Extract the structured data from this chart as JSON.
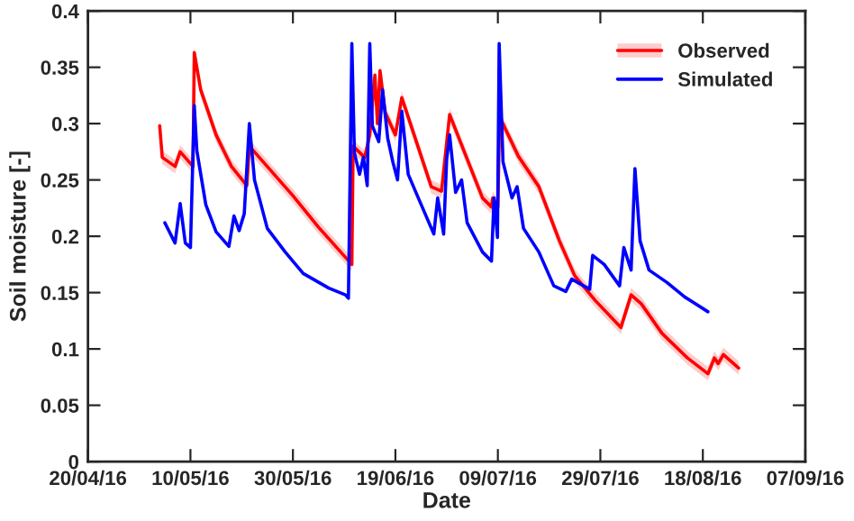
{
  "chart_data": {
    "type": "line",
    "xlabel": "Date",
    "ylabel": "Soil moisture [-]",
    "xlim": [
      "2016-04-20",
      "2016-09-07"
    ],
    "xticks": [
      {
        "value": "2016-04-20",
        "label": "20/04/16"
      },
      {
        "value": "2016-05-10",
        "label": "10/05/16"
      },
      {
        "value": "2016-05-30",
        "label": "30/05/16"
      },
      {
        "value": "2016-06-19",
        "label": "19/06/16"
      },
      {
        "value": "2016-07-09",
        "label": "09/07/16"
      },
      {
        "value": "2016-07-29",
        "label": "29/07/16"
      },
      {
        "value": "2016-08-18",
        "label": "18/08/16"
      },
      {
        "value": "2016-09-07",
        "label": "07/09/16"
      }
    ],
    "ylim": [
      0,
      0.4
    ],
    "yticks": [
      0,
      0.05,
      0.1,
      0.15,
      0.2,
      0.25,
      0.3,
      0.35,
      0.4
    ],
    "grid": false,
    "legend": "top right",
    "line_style": "solid",
    "marker": "none",
    "series": [
      {
        "name": "Observed",
        "color": "#ff0000",
        "x": [
          "2016-05-04T00:00",
          "2016-05-04T12:00",
          "2016-05-07T00:00",
          "2016-05-08T00:00",
          "2016-05-10T12:00",
          "2016-05-10T18:00",
          "2016-05-12T00:00",
          "2016-05-15T00:00",
          "2016-05-18T00:00",
          "2016-05-21T00:00",
          "2016-05-21T12:00",
          "2016-05-30T00:00",
          "2016-06-04T00:00",
          "2016-06-10T12:00",
          "2016-06-10T18:00",
          "2016-06-13T00:00",
          "2016-06-14T00:00",
          "2016-06-15T00:00",
          "2016-06-15T12:00",
          "2016-06-16T00:00",
          "2016-06-17T00:00",
          "2016-06-19T00:00",
          "2016-06-20T06:00",
          "2016-06-26T00:00",
          "2016-06-28T00:00",
          "2016-06-29T14:00",
          "2016-07-06T00:00",
          "2016-07-07T18:00",
          "2016-07-08T00:00",
          "2016-07-09T00:00",
          "2016-07-09T08:00",
          "2016-07-13T00:00",
          "2016-07-17T00:00",
          "2016-07-21T00:00",
          "2016-07-24T00:00",
          "2016-07-28T00:00",
          "2016-08-02T00:00",
          "2016-08-04T00:00",
          "2016-08-06T00:00",
          "2016-08-10T00:00",
          "2016-08-15T00:00",
          "2016-08-19T00:00",
          "2016-08-20T06:00",
          "2016-08-21T00:00",
          "2016-08-22T00:00",
          "2016-08-25T00:00"
        ],
        "values": [
          0.298,
          0.27,
          0.262,
          0.275,
          0.262,
          0.363,
          0.33,
          0.29,
          0.262,
          0.245,
          0.28,
          0.236,
          0.208,
          0.175,
          0.28,
          0.27,
          0.29,
          0.343,
          0.3,
          0.347,
          0.31,
          0.29,
          0.323,
          0.244,
          0.24,
          0.308,
          0.234,
          0.226,
          0.234,
          0.226,
          0.306,
          0.271,
          0.244,
          0.196,
          0.165,
          0.143,
          0.119,
          0.148,
          0.14,
          0.114,
          0.092,
          0.078,
          0.092,
          0.087,
          0.095,
          0.083
        ],
        "lower": [
          0.292,
          0.264,
          0.256,
          0.269,
          0.256,
          0.357,
          0.324,
          0.284,
          0.256,
          0.239,
          0.274,
          0.23,
          0.202,
          0.169,
          0.274,
          0.264,
          0.284,
          0.337,
          0.294,
          0.341,
          0.304,
          0.284,
          0.317,
          0.238,
          0.234,
          0.302,
          0.228,
          0.22,
          0.228,
          0.22,
          0.3,
          0.265,
          0.238,
          0.19,
          0.159,
          0.137,
          0.113,
          0.142,
          0.134,
          0.108,
          0.086,
          0.072,
          0.086,
          0.081,
          0.089,
          0.077
        ],
        "upper": [
          0.304,
          0.276,
          0.268,
          0.281,
          0.268,
          0.369,
          0.336,
          0.296,
          0.268,
          0.251,
          0.286,
          0.242,
          0.214,
          0.181,
          0.286,
          0.276,
          0.296,
          0.349,
          0.306,
          0.353,
          0.316,
          0.296,
          0.329,
          0.25,
          0.246,
          0.314,
          0.24,
          0.232,
          0.24,
          0.232,
          0.312,
          0.277,
          0.25,
          0.202,
          0.171,
          0.149,
          0.125,
          0.154,
          0.146,
          0.12,
          0.098,
          0.084,
          0.098,
          0.093,
          0.101,
          0.089
        ]
      },
      {
        "name": "Simulated",
        "color": "#0000ff",
        "x": [
          "2016-05-05T00:00",
          "2016-05-07T00:00",
          "2016-05-08T00:00",
          "2016-05-09T00:00",
          "2016-05-10T00:00",
          "2016-05-10T18:00",
          "2016-05-11T06:00",
          "2016-05-13T00:00",
          "2016-05-15T00:00",
          "2016-05-17T12:00",
          "2016-05-18T12:00",
          "2016-05-19T12:00",
          "2016-05-20T12:00",
          "2016-05-21T12:00",
          "2016-05-22T12:00",
          "2016-05-25T00:00",
          "2016-05-28T12:00",
          "2016-06-01T00:00",
          "2016-06-06T00:00",
          "2016-06-09T06:00",
          "2016-06-09T20:00",
          "2016-06-10T12:00",
          "2016-06-11T00:00",
          "2016-06-12T00:00",
          "2016-06-12T18:00",
          "2016-06-13T12:00",
          "2016-06-14T00:00",
          "2016-06-14T12:00",
          "2016-06-15T18:00",
          "2016-06-16T12:00",
          "2016-06-17T12:00",
          "2016-06-18T12:00",
          "2016-06-19T10:00",
          "2016-06-20T06:00",
          "2016-06-21T12:00",
          "2016-06-23T00:00",
          "2016-06-26T12:00",
          "2016-06-27T06:00",
          "2016-06-28T10:00",
          "2016-06-29T00:00",
          "2016-06-29T14:00",
          "2016-06-30T18:00",
          "2016-07-01T22:00",
          "2016-07-03T00:00",
          "2016-07-06T00:00",
          "2016-07-07T18:00",
          "2016-07-08T06:00",
          "2016-07-08T22:00",
          "2016-07-09T06:00",
          "2016-07-10T00:00",
          "2016-07-11T18:00",
          "2016-07-12T18:00",
          "2016-07-14T00:00",
          "2016-07-17T00:00",
          "2016-07-19T22:00",
          "2016-07-22T06:00",
          "2016-07-23T10:00",
          "2016-07-26T22:00",
          "2016-07-27T12:00",
          "2016-07-29T18:00",
          "2016-08-01T18:00",
          "2016-08-02T14:00",
          "2016-08-04T00:00",
          "2016-08-04T18:00",
          "2016-08-05T18:00",
          "2016-08-07T12:00",
          "2016-08-11T00:00",
          "2016-08-14T12:00",
          "2016-08-19T00:00"
        ],
        "values": [
          0.212,
          0.194,
          0.229,
          0.194,
          0.19,
          0.316,
          0.276,
          0.228,
          0.204,
          0.191,
          0.218,
          0.205,
          0.22,
          0.3,
          0.25,
          0.207,
          0.186,
          0.167,
          0.154,
          0.148,
          0.145,
          0.371,
          0.274,
          0.255,
          0.27,
          0.245,
          0.371,
          0.298,
          0.284,
          0.33,
          0.287,
          0.266,
          0.25,
          0.311,
          0.255,
          0.239,
          0.202,
          0.234,
          0.202,
          0.268,
          0.29,
          0.239,
          0.25,
          0.212,
          0.186,
          0.178,
          0.234,
          0.199,
          0.371,
          0.266,
          0.234,
          0.244,
          0.207,
          0.186,
          0.156,
          0.151,
          0.162,
          0.153,
          0.183,
          0.175,
          0.156,
          0.19,
          0.17,
          0.26,
          0.196,
          0.17,
          0.159,
          0.146,
          0.133
        ]
      }
    ]
  }
}
